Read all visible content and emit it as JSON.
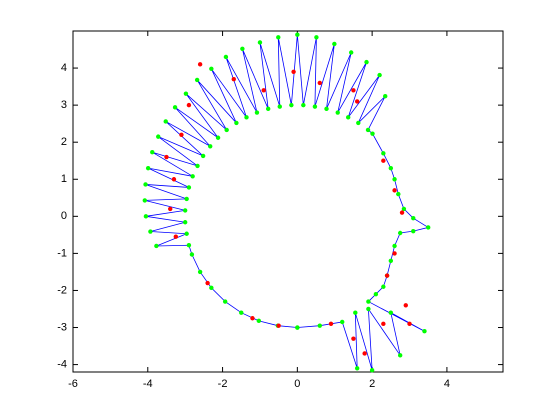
{
  "chart_data": {
    "type": "line",
    "xlim": [
      -6,
      5.5
    ],
    "ylim": [
      -4.2,
      5
    ],
    "xticks": [
      -6,
      -4,
      -2,
      0,
      2,
      4
    ],
    "yticks": [
      -4,
      -3,
      -2,
      -1,
      0,
      1,
      2,
      3,
      4
    ],
    "series": [
      {
        "color": "#0000ff",
        "marker_color": "#00ff00",
        "line": true,
        "x": [
          0,
          -0.52,
          -1.03,
          -1.5,
          -1.93,
          -2.3,
          -2.6,
          -2.82,
          -2.9,
          -3.77,
          -2.96,
          -3.93,
          -3.0,
          -4.05,
          -3.0,
          -4.08,
          -2.96,
          -4.06,
          -2.9,
          -3.99,
          -2.8,
          -3.88,
          -2.67,
          -3.72,
          -2.52,
          -3.52,
          -2.33,
          -3.27,
          -2.12,
          -2.98,
          -1.89,
          -2.68,
          -1.63,
          -2.3,
          -1.36,
          -1.91,
          -1.08,
          -1.47,
          -0.78,
          -1.0,
          -0.47,
          -0.51,
          -0.16,
          0,
          0.16,
          0.51,
          0.47,
          0.99,
          0.78,
          1.44,
          1.08,
          1.85,
          1.36,
          2.2,
          1.63,
          2.35,
          1.89,
          2.01,
          2.3,
          2.5,
          2.6,
          2.7,
          2.85,
          3.1,
          3.5,
          3.1,
          2.75,
          2.6,
          2.5,
          2.4,
          2.3,
          2.1,
          1.9,
          3.4,
          2.5,
          2.75,
          1.9,
          2.0,
          1.55,
          1.6,
          1.2,
          0.6,
          0
        ],
        "y": [
          -3,
          -2.95,
          -2.82,
          -2.6,
          -2.3,
          -1.93,
          -1.5,
          -1.03,
          -0.78,
          -0.8,
          -0.47,
          -0.41,
          -0.16,
          0,
          0.16,
          0.43,
          0.47,
          0.86,
          0.78,
          1.3,
          1.08,
          1.73,
          1.36,
          2.15,
          1.63,
          2.56,
          1.89,
          2.94,
          2.12,
          3.31,
          2.33,
          3.68,
          2.52,
          3.98,
          2.67,
          4.3,
          2.8,
          4.52,
          2.9,
          4.69,
          2.96,
          4.83,
          3.0,
          4.9,
          3.0,
          4.83,
          2.96,
          4.65,
          2.9,
          4.42,
          2.8,
          4.16,
          2.67,
          3.81,
          2.52,
          3.24,
          2.33,
          2.23,
          1.7,
          1.3,
          1.0,
          0.6,
          0.2,
          -0.05,
          -0.3,
          -0.4,
          -0.45,
          -0.8,
          -1.2,
          -1.6,
          -1.9,
          -2.1,
          -2.3,
          -3.1,
          -2.6,
          -3.75,
          -2.5,
          -4.15,
          -2.6,
          -4.1,
          -2.85,
          -2.95,
          -3
        ]
      },
      {
        "marker_color": "#ff0000",
        "line": false,
        "x": [
          -1.2,
          -0.5,
          -2.4,
          -3.25,
          -3.4,
          -3.3,
          -3.5,
          -3.1,
          -2.9,
          -2.6,
          -1.7,
          -0.9,
          -0.1,
          0.6,
          1.5,
          1.6,
          2.3,
          2.6,
          2.8,
          2.6,
          2.4,
          2.9,
          3.0,
          2.3,
          1.8,
          1.5,
          0.9
        ],
        "y": [
          -2.75,
          -2.95,
          -1.8,
          -0.55,
          0.2,
          1.0,
          1.6,
          2.2,
          3.0,
          4.1,
          3.7,
          3.4,
          3.9,
          3.6,
          3.4,
          3.1,
          1.5,
          0.7,
          0.1,
          -1.0,
          -1.6,
          -2.4,
          -2.9,
          -2.9,
          -3.7,
          -3.3,
          -2.9
        ]
      }
    ]
  }
}
